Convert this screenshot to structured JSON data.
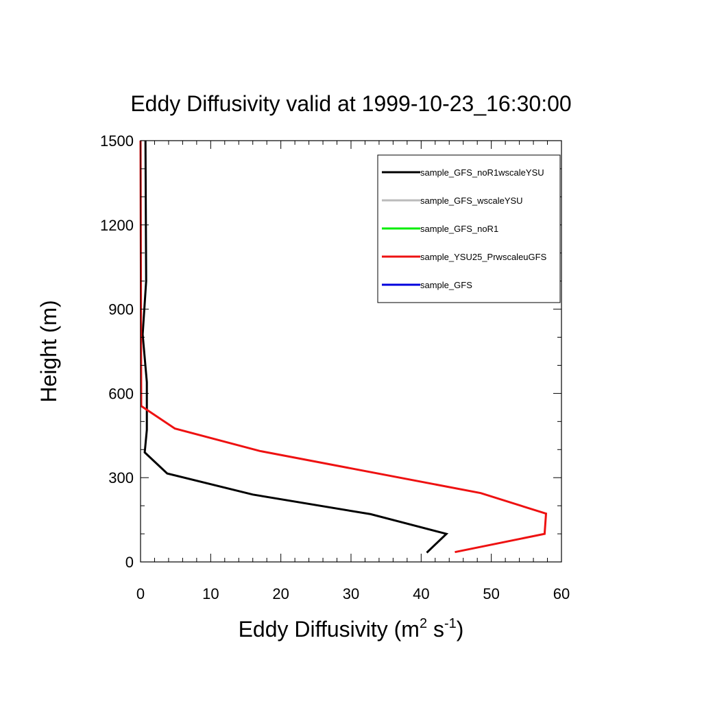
{
  "chart_data": {
    "type": "line",
    "title": "Eddy Diffusivity valid at 1999-10-23_16:30:00",
    "xlabel_base": "Eddy Diffusivity (m",
    "xlabel_sup1": "2",
    "xlabel_mid": " s",
    "xlabel_sup2": "-1",
    "xlabel_end": ")",
    "ylabel": "Height (m)",
    "xlim": [
      0,
      60
    ],
    "ylim": [
      0,
      1500
    ],
    "xticks": [
      0,
      10,
      20,
      30,
      40,
      50,
      60
    ],
    "yticks": [
      0,
      300,
      600,
      900,
      1200,
      1500
    ],
    "grid": false,
    "legend_position": "top-right",
    "series": [
      {
        "name": "sample_GFS_noR1wscaleYSU",
        "color": "#000000",
        "points": [
          [
            40.8,
            33
          ],
          [
            43.6,
            100
          ],
          [
            32.8,
            170
          ],
          [
            16,
            240
          ],
          [
            3.8,
            315
          ],
          [
            0.6,
            390
          ],
          [
            0.9,
            470
          ],
          [
            0.9,
            640
          ],
          [
            0.3,
            810
          ],
          [
            0.8,
            1000
          ],
          [
            0.7,
            1500
          ]
        ]
      },
      {
        "name": "sample_GFS_wscaleYSU",
        "color": "#bbbbbb",
        "points": []
      },
      {
        "name": "sample_GFS_noR1",
        "color": "#00ee00",
        "points": []
      },
      {
        "name": "sample_YSU25_PrwscaleuGFS",
        "color": "#ee1111",
        "points": [
          [
            44.8,
            35
          ],
          [
            57.6,
            100
          ],
          [
            57.8,
            172
          ],
          [
            48.5,
            245
          ],
          [
            17,
            395
          ],
          [
            4.9,
            475
          ],
          [
            0.1,
            555
          ],
          [
            0,
            1500
          ]
        ]
      },
      {
        "name": "sample_GFS",
        "color": "#0000dd",
        "points": []
      }
    ]
  }
}
